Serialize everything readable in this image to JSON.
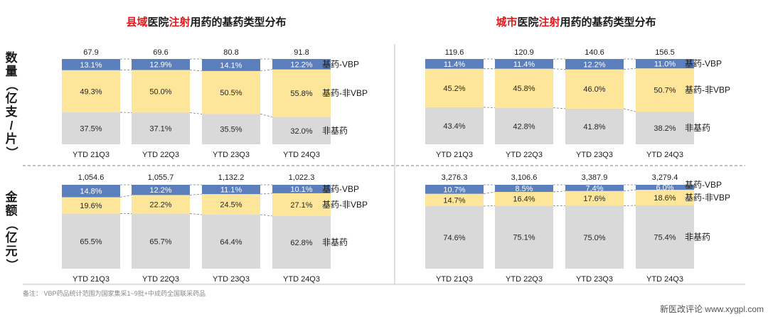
{
  "colors": {
    "vbp": "#5b7fbc",
    "nonvbp": "#fde599",
    "nonbasic": "#d9d9d9",
    "highlight": "#e0191c",
    "divider": "#7f7f7f"
  },
  "panels": {
    "county_title_pre": "县域",
    "county_title_mid": "医院",
    "county_title_hl": "注射",
    "county_title_post": "用药的基药类型分布",
    "city_title_pre": "城市",
    "city_title_mid": "医院",
    "city_title_hl": "注射",
    "city_title_post": "用药的基药类型分布"
  },
  "row_labels": {
    "volume": [
      "数",
      "量",
      "（",
      "亿",
      "支",
      "/",
      "片",
      "）"
    ],
    "amount": [
      "金",
      "额",
      "（",
      "亿",
      "元",
      "）"
    ]
  },
  "legend": {
    "vbp": "基药-VBP",
    "nonvbp": "基药-非VBP",
    "nonbasic": "非基药"
  },
  "footnote": "备注：  VBP药品统计范围为国家集采1~9批+中成药全国联采药品",
  "source_watermark": "新医改评论 www.xygpl.com",
  "chart_data": [
    {
      "type": "bar",
      "stacked": "percent",
      "panel": "county",
      "measure": "volume",
      "categories": [
        "YTD 21Q3",
        "YTD 22Q3",
        "YTD 23Q3",
        "YTD 24Q3"
      ],
      "totals": [
        "67.9",
        "69.6",
        "80.8",
        "91.8"
      ],
      "series": [
        {
          "name": "非基药",
          "values": [
            37.5,
            37.1,
            35.5,
            32.0
          ]
        },
        {
          "name": "基药-非VBP",
          "values": [
            49.3,
            50.0,
            50.5,
            55.8
          ]
        },
        {
          "name": "基药-VBP",
          "values": [
            13.1,
            12.9,
            14.1,
            12.2
          ]
        }
      ]
    },
    {
      "type": "bar",
      "stacked": "percent",
      "panel": "city",
      "measure": "volume",
      "categories": [
        "YTD 21Q3",
        "YTD 22Q3",
        "YTD 23Q3",
        "YTD 24Q3"
      ],
      "totals": [
        "119.6",
        "120.9",
        "140.6",
        "156.5"
      ],
      "series": [
        {
          "name": "非基药",
          "values": [
            43.4,
            42.8,
            41.8,
            38.2
          ]
        },
        {
          "name": "基药-非VBP",
          "values": [
            45.2,
            45.8,
            46.0,
            50.7
          ]
        },
        {
          "name": "基药-VBP",
          "values": [
            11.4,
            11.4,
            12.2,
            11.0
          ]
        }
      ]
    },
    {
      "type": "bar",
      "stacked": "percent",
      "panel": "county",
      "measure": "amount",
      "categories": [
        "YTD 21Q3",
        "YTD 22Q3",
        "YTD 23Q3",
        "YTD 24Q3"
      ],
      "totals": [
        "1,054.6",
        "1,055.7",
        "1,132.2",
        "1,022.3"
      ],
      "series": [
        {
          "name": "非基药",
          "values": [
            65.5,
            65.7,
            64.4,
            62.8
          ]
        },
        {
          "name": "基药-非VBP",
          "values": [
            19.6,
            22.2,
            24.5,
            27.1
          ]
        },
        {
          "name": "基药-VBP",
          "values": [
            14.8,
            12.2,
            11.1,
            10.1
          ]
        }
      ]
    },
    {
      "type": "bar",
      "stacked": "percent",
      "panel": "city",
      "measure": "amount",
      "categories": [
        "YTD 21Q3",
        "YTD 22Q3",
        "YTD 23Q3",
        "YTD 24Q3"
      ],
      "totals": [
        "3,276.3",
        "3,106.6",
        "3,387.9",
        "3,279.4"
      ],
      "series": [
        {
          "name": "非基药",
          "values": [
            74.6,
            75.1,
            75.0,
            75.4
          ]
        },
        {
          "name": "基药-非VBP",
          "values": [
            14.7,
            16.4,
            17.6,
            18.6
          ]
        },
        {
          "name": "基药-VBP",
          "values": [
            10.7,
            8.5,
            7.4,
            6.0
          ]
        }
      ]
    }
  ]
}
